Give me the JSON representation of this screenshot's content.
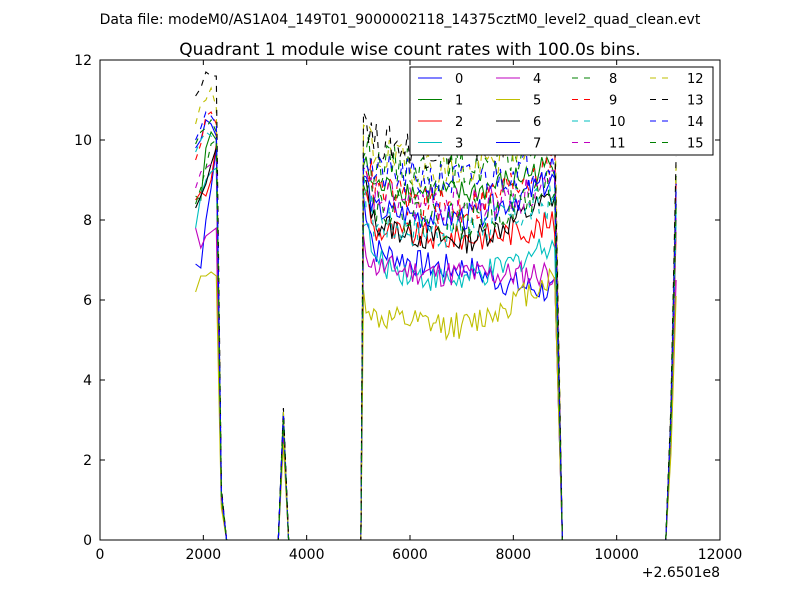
{
  "figure": {
    "suptitle": "Data file: modeM0/AS1A04_149T01_9000002118_14375cztM0_level2_quad_clean.evt"
  },
  "chart_data": {
    "type": "line",
    "title": "Quadrant 1 module wise count rates with 100.0s bins.",
    "xlabel": "",
    "ylabel": "",
    "x_offset_label": "+2.6501e8",
    "xlim": [
      0,
      12000
    ],
    "ylim": [
      0,
      12
    ],
    "xticks": [
      "0",
      "2000",
      "4000",
      "6000",
      "8000",
      "10000",
      "12000"
    ],
    "yticks": [
      "0",
      "2",
      "4",
      "6",
      "8",
      "10",
      "12"
    ],
    "grid": false,
    "legend_placement": "top-right",
    "legend_columns": 4,
    "segments_x": {
      "seg1": [
        1850,
        1950,
        2050,
        2150,
        2250,
        2350,
        2450
      ],
      "seg2": [
        2450,
        3450,
        3550,
        3650,
        5050
      ],
      "seg3_start": 5050,
      "seg3_step": 50,
      "seg3_end": 8800,
      "seg4": [
        8800,
        8950,
        10950,
        11050,
        11150
      ]
    },
    "series": [
      {
        "name": "0",
        "color": "#0000ff",
        "dash": "solid",
        "seg1": [
          6.9,
          6.8,
          8.0,
          8.8,
          9.8,
          1.0,
          0
        ],
        "gap_level": 2.7,
        "mid": 7.4,
        "end": 6.2,
        "spike": 8.7
      },
      {
        "name": "1",
        "color": "#008000",
        "dash": "solid",
        "seg1": [
          8.6,
          8.5,
          9.8,
          10.2,
          10.0,
          1.1,
          0
        ],
        "gap_level": 3.1,
        "mid": 8.9,
        "end": 9.4,
        "spike": 9.1
      },
      {
        "name": "2",
        "color": "#ff0000",
        "dash": "solid",
        "seg1": [
          8.5,
          8.7,
          8.6,
          9.0,
          9.9,
          1.1,
          0
        ],
        "gap_level": 3.1,
        "mid": 7.8,
        "end": 7.9,
        "spike": 7.7
      },
      {
        "name": "3",
        "color": "#00bfbf",
        "dash": "solid",
        "seg1": [
          7.8,
          8.6,
          9.0,
          9.2,
          9.3,
          1.0,
          0
        ],
        "gap_level": 2.9,
        "mid": 7.1,
        "end": 7.5,
        "spike": 8.0
      },
      {
        "name": "4",
        "color": "#bf00bf",
        "dash": "solid",
        "seg1": [
          7.8,
          7.3,
          7.6,
          7.7,
          7.8,
          0.9,
          0
        ],
        "gap_level": 2.6,
        "mid": 6.9,
        "end": 6.7,
        "spike": 6.5
      },
      {
        "name": "5",
        "color": "#bfbf00",
        "dash": "solid",
        "seg1": [
          6.2,
          6.6,
          6.6,
          6.7,
          6.6,
          0.8,
          0
        ],
        "gap_level": 2.4,
        "mid": 5.6,
        "end": 6.6,
        "spike": 6.1
      },
      {
        "name": "6",
        "color": "#000000",
        "dash": "solid",
        "seg1": [
          8.3,
          8.6,
          8.9,
          9.4,
          9.8,
          1.1,
          0
        ],
        "gap_level": 3.0,
        "mid": 8.1,
        "end": 8.6,
        "spike": 8.4
      },
      {
        "name": "7",
        "color": "#0000ff",
        "dash": "solid",
        "seg1": [
          9.8,
          10.0,
          10.5,
          10.4,
          10.1,
          1.2,
          0
        ],
        "gap_level": 3.2,
        "mid": 8.3,
        "end": 9.0,
        "spike": 8.9
      },
      {
        "name": "8",
        "color": "#008000",
        "dash": "dashed",
        "seg1": [
          9.9,
          10.2,
          10.3,
          10.5,
          10.2,
          1.2,
          0
        ],
        "gap_level": 3.2,
        "mid": 9.5,
        "end": 10.0,
        "spike": 9.3
      },
      {
        "name": "9",
        "color": "#ff0000",
        "dash": "dashed",
        "seg1": [
          9.5,
          9.9,
          10.6,
          10.7,
          10.4,
          1.2,
          0
        ],
        "gap_level": 3.1,
        "mid": 8.9,
        "end": 9.6,
        "spike": 9.0
      },
      {
        "name": "10",
        "color": "#00bfbf",
        "dash": "dashed",
        "seg1": [
          9.7,
          10.0,
          10.2,
          10.1,
          10.0,
          1.1,
          0
        ],
        "gap_level": 3.0,
        "mid": 8.0,
        "end": 8.5,
        "spike": 8.2
      },
      {
        "name": "11",
        "color": "#bf00bf",
        "dash": "dashed",
        "seg1": [
          8.8,
          9.2,
          9.3,
          9.4,
          9.5,
          1.1,
          0
        ],
        "gap_level": 2.9,
        "mid": 8.6,
        "end": 8.8,
        "spike": 8.1
      },
      {
        "name": "12",
        "color": "#bfbf00",
        "dash": "dashed",
        "seg1": [
          10.4,
          10.9,
          11.0,
          11.3,
          10.8,
          1.2,
          0
        ],
        "gap_level": 3.2,
        "mid": 9.8,
        "end": 10.4,
        "spike": 9.4
      },
      {
        "name": "13",
        "color": "#000000",
        "dash": "dashed",
        "seg1": [
          11.1,
          11.3,
          11.7,
          11.6,
          11.6,
          1.3,
          0
        ],
        "gap_level": 3.3,
        "mid": 10.0,
        "end": 10.6,
        "spike": 9.6
      },
      {
        "name": "14",
        "color": "#0000ff",
        "dash": "dashed",
        "seg1": [
          10.0,
          10.3,
          10.7,
          10.6,
          10.4,
          1.2,
          0
        ],
        "gap_level": 3.1,
        "mid": 9.2,
        "end": 9.5,
        "spike": 8.9
      },
      {
        "name": "15",
        "color": "#008000",
        "dash": "dashed",
        "seg1": [
          8.4,
          8.8,
          9.3,
          9.9,
          10.0,
          1.1,
          0
        ],
        "gap_level": 3.0,
        "mid": 8.6,
        "end": 8.9,
        "spike": 8.3
      }
    ]
  }
}
